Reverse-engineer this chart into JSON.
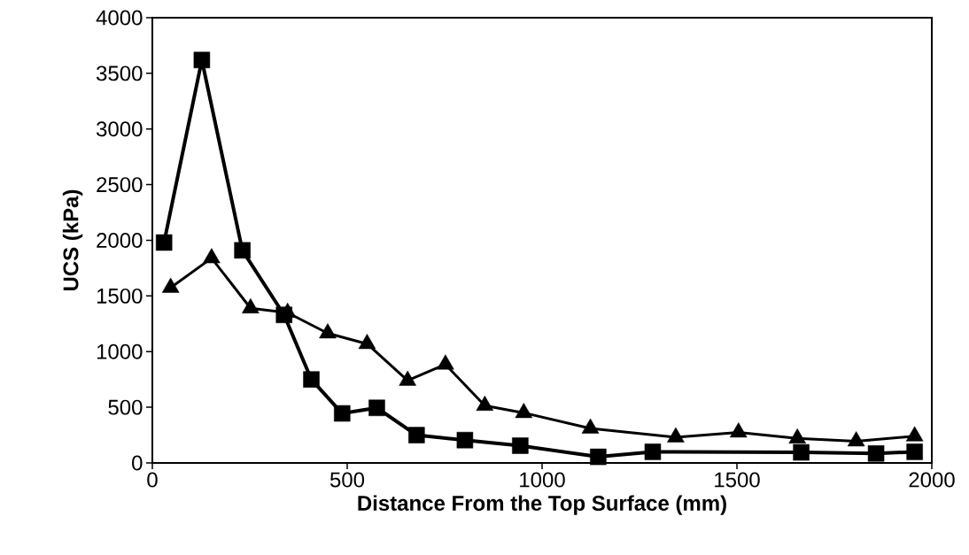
{
  "chart_data": {
    "type": "line",
    "xlabel": "Distance From the Top Surface (mm)",
    "ylabel": "UCS (kPa)",
    "xlim": [
      0,
      2000
    ],
    "ylim": [
      0,
      4000
    ],
    "xticks": [
      0,
      500,
      1000,
      1500,
      2000
    ],
    "yticks": [
      0,
      500,
      1000,
      1500,
      2000,
      2500,
      3000,
      3500,
      4000
    ],
    "grid": false,
    "legend": false,
    "line_style": "solid",
    "series": [
      {
        "color": "#000000",
        "marker": "square",
        "x": [
          30,
          127,
          231,
          338,
          408,
          487,
          576,
          678,
          802,
          944,
          1144,
          1284,
          1665,
          1857,
          1956
        ],
        "values": [
          1980,
          3620,
          1910,
          1330,
          750,
          445,
          495,
          250,
          205,
          155,
          55,
          100,
          95,
          85,
          100
        ]
      },
      {
        "color": "#000000",
        "marker": "triangle",
        "x": [
          47,
          152,
          252,
          347,
          450,
          551,
          655,
          752,
          853,
          953,
          1124,
          1343,
          1504,
          1655,
          1806,
          1956
        ],
        "values": [
          1575,
          1840,
          1390,
          1350,
          1165,
          1070,
          740,
          885,
          515,
          450,
          310,
          230,
          275,
          220,
          195,
          240
        ]
      }
    ]
  }
}
